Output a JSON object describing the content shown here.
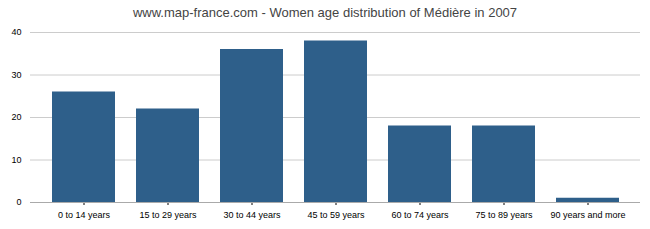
{
  "chart_data": {
    "type": "bar",
    "title": "www.map-france.com - Women age distribution of Médière in 2007",
    "categories": [
      "0 to 14 years",
      "15 to 29 years",
      "30 to 44 years",
      "45 to 59 years",
      "60 to 74 years",
      "75 to 89 years",
      "90 years and more"
    ],
    "values": [
      26,
      22,
      36,
      38,
      18,
      18,
      1
    ],
    "color": "#2e5f8a",
    "ylim": [
      0,
      40
    ],
    "yticks": [
      0,
      10,
      20,
      30,
      40
    ],
    "grid": true
  }
}
